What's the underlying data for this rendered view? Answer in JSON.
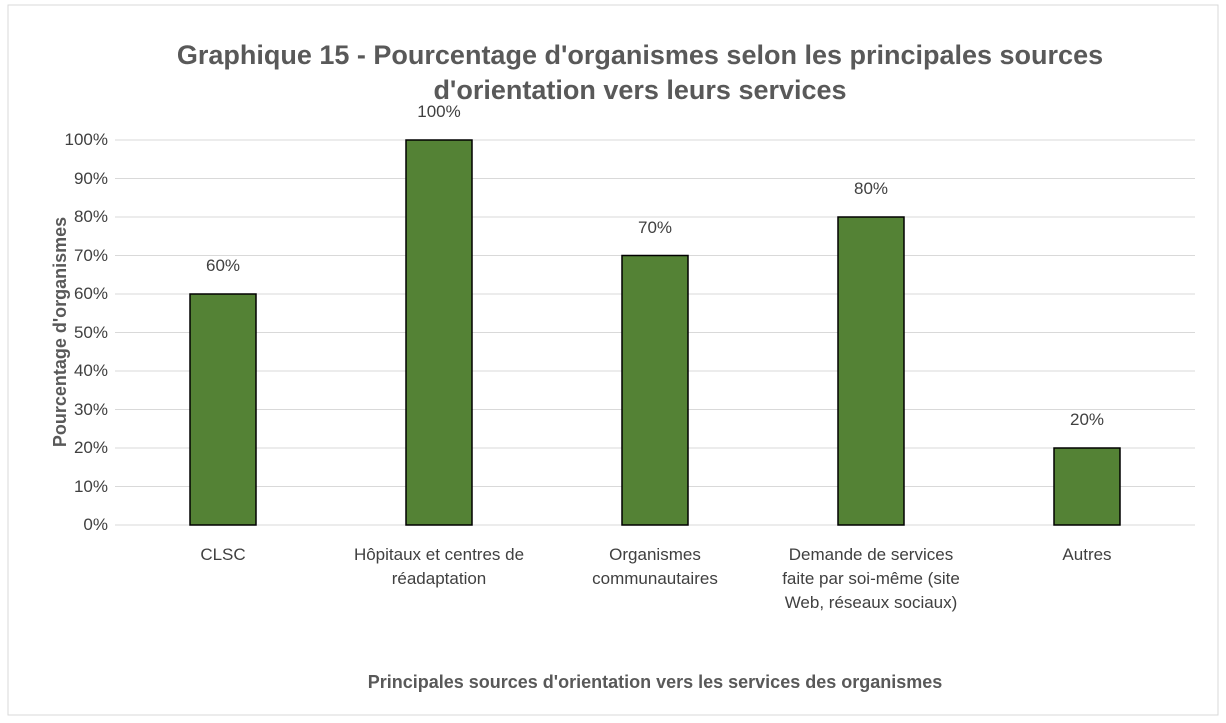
{
  "chart_data": {
    "type": "bar",
    "title": "Graphique 15 - Pourcentage d'organismes selon les principales sources d'orientation vers leurs services",
    "x_label": "Principales sources d'orientation vers les services des organismes",
    "y_label": "Pourcentage d'organismes",
    "categories": [
      "CLSC",
      "Hôpitaux et centres de réadaptation",
      "Organismes communautaires",
      "Demande de services faite par soi-même (site Web, réseaux sociaux)",
      "Autres"
    ],
    "values": [
      60,
      100,
      70,
      80,
      20
    ],
    "value_labels": [
      "60%",
      "100%",
      "70%",
      "80%",
      "20%"
    ],
    "color": "#548235",
    "ylim": [
      0,
      100
    ],
    "yticks": [
      {
        "value": 0,
        "label": "0%"
      },
      {
        "value": 10,
        "label": "10%"
      },
      {
        "value": 20,
        "label": "20%"
      },
      {
        "value": 30,
        "label": "30%"
      },
      {
        "value": 40,
        "label": "40%"
      },
      {
        "value": 50,
        "label": "50%"
      },
      {
        "value": 60,
        "label": "60%"
      },
      {
        "value": 70,
        "label": "70%"
      },
      {
        "value": 80,
        "label": "80%"
      },
      {
        "value": 90,
        "label": "90%"
      },
      {
        "value": 100,
        "label": "100%"
      }
    ],
    "grid": true
  }
}
